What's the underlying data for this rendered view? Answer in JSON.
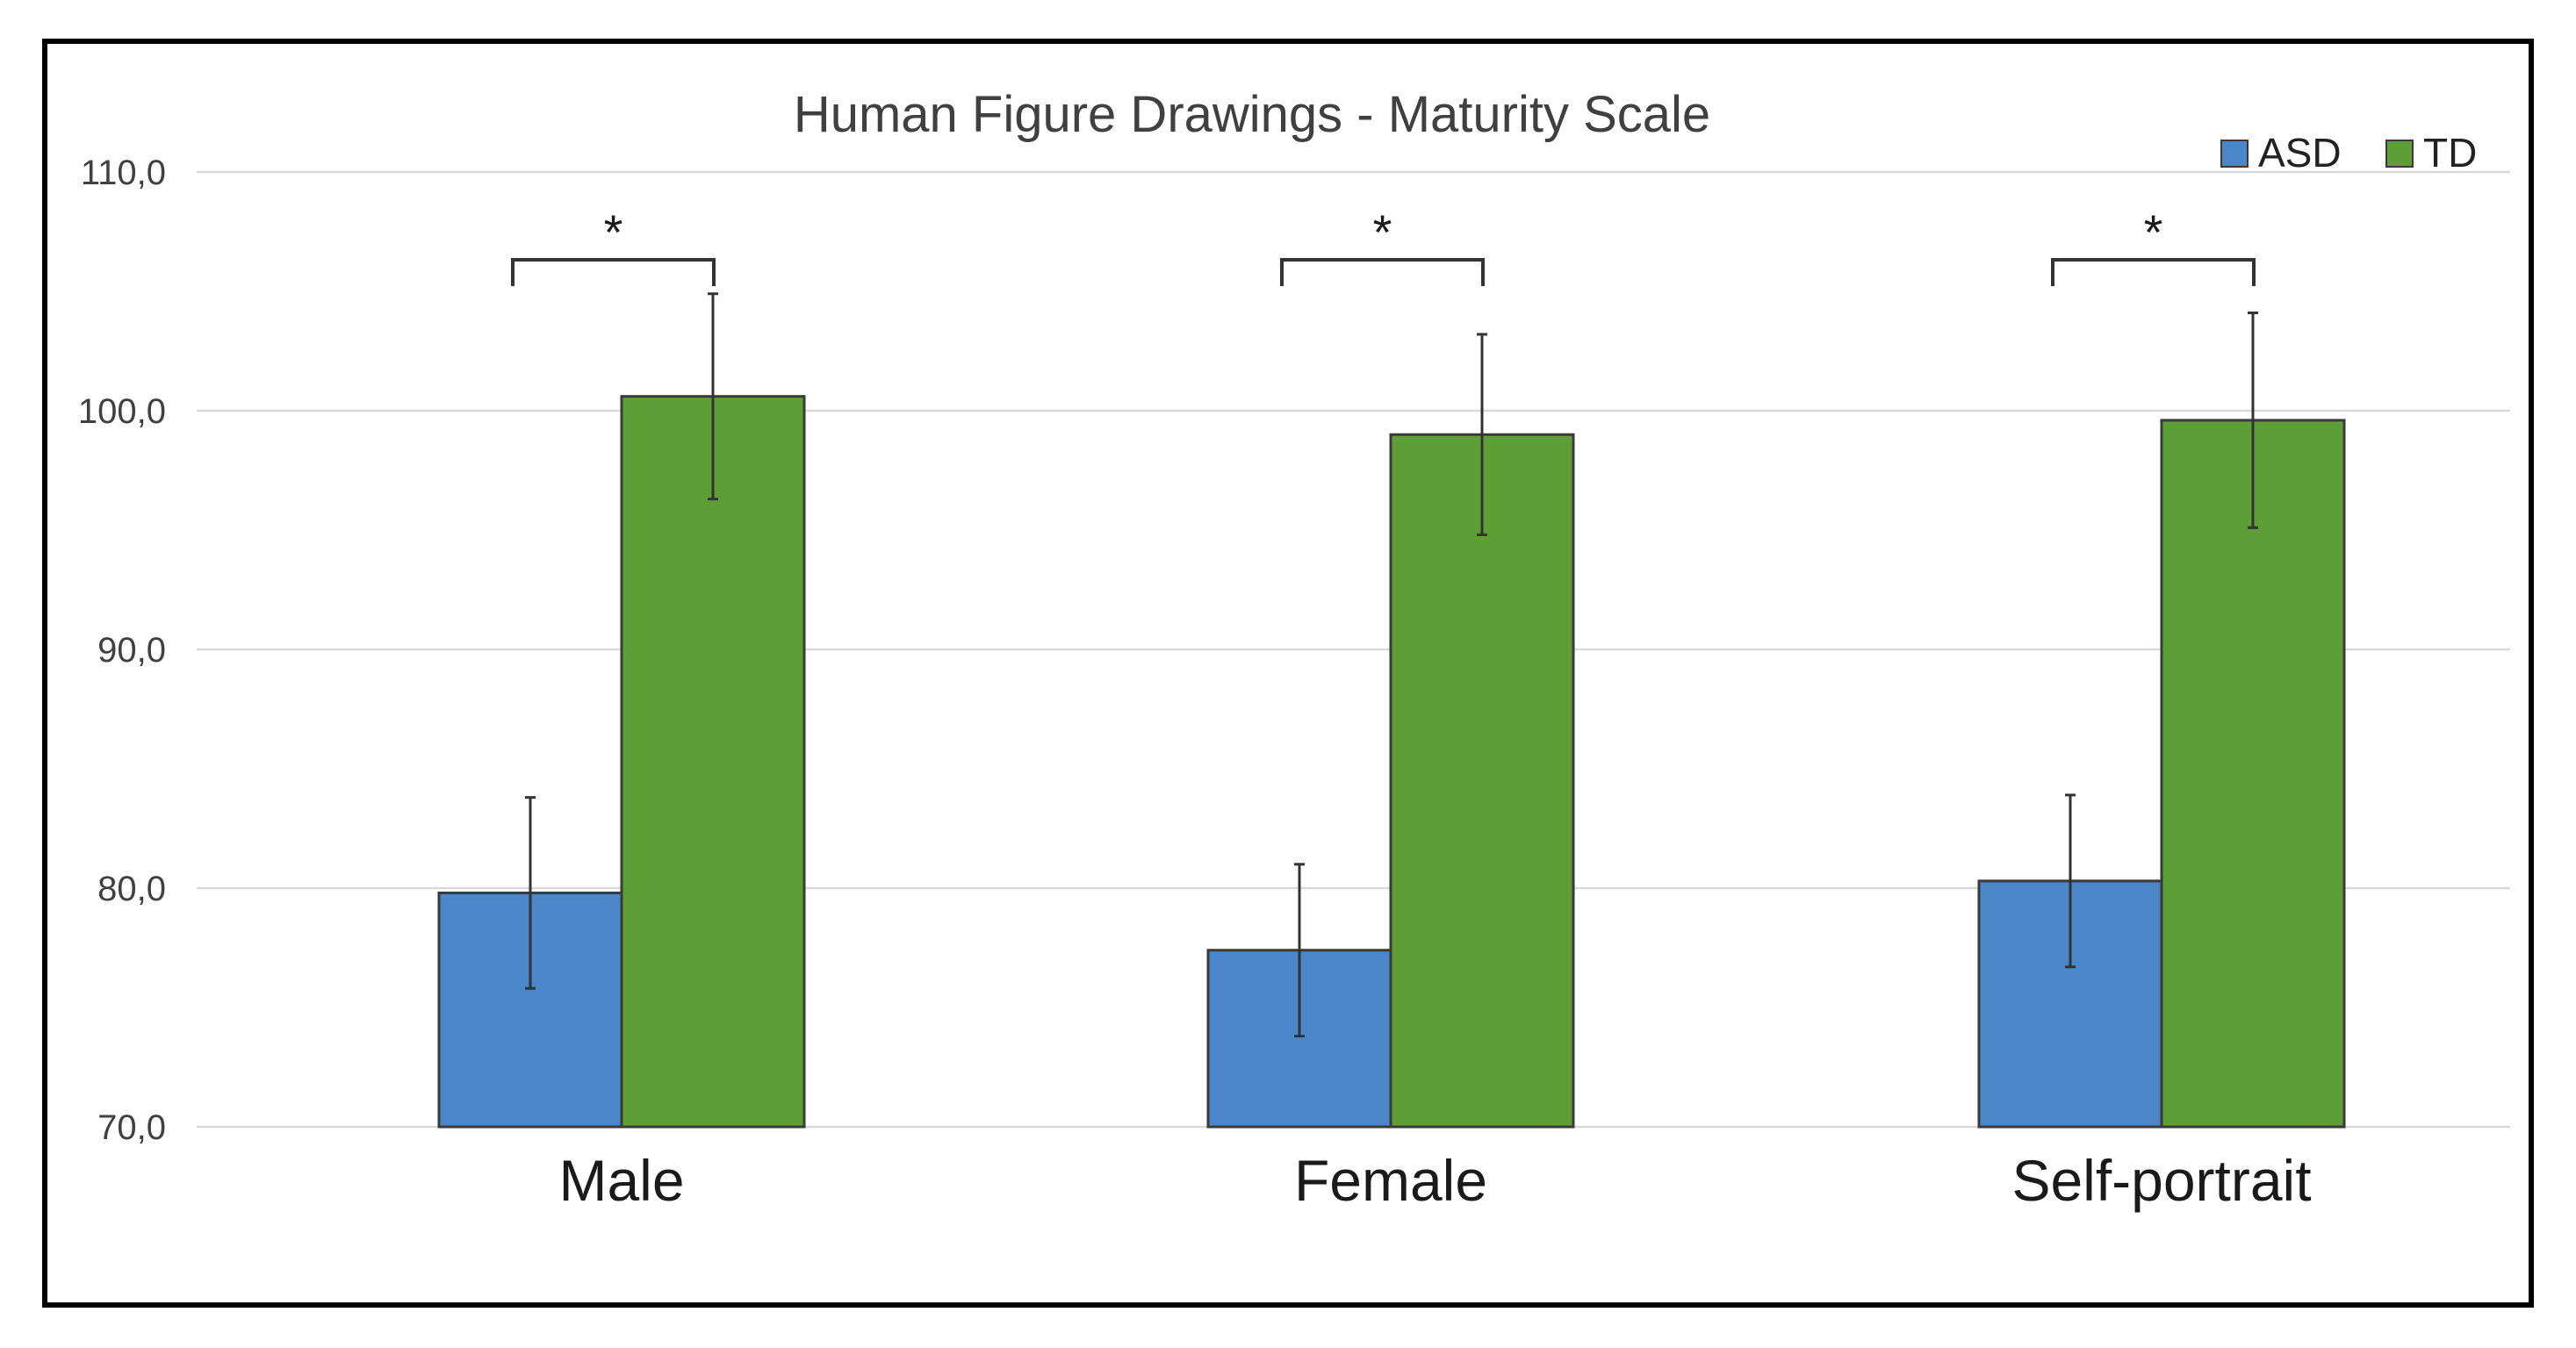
{
  "chart_data": {
    "type": "bar",
    "title": "Human Figure Drawings - Maturity Scale",
    "xlabel": "",
    "ylabel": "",
    "categories": [
      "Male",
      "Female",
      "Self-portrait"
    ],
    "series": [
      {
        "name": "ASD",
        "color": "#4a86c8",
        "values": [
          79.8,
          77.4,
          80.3
        ],
        "error": [
          4.0,
          3.6,
          3.6
        ]
      },
      {
        "name": "TD",
        "color": "#5e9e36",
        "values": [
          100.6,
          99.0,
          99.6
        ],
        "error": [
          4.3,
          4.2,
          4.5
        ]
      }
    ],
    "ylim": [
      70,
      110
    ],
    "yticks": [
      "70,0",
      "80,0",
      "90,0",
      "100,0",
      "110,0"
    ],
    "ytick_values": [
      70,
      80,
      90,
      100,
      110
    ],
    "grid": true,
    "legend_position": "top-right",
    "significance": [
      {
        "category": "Male",
        "label": "*"
      },
      {
        "category": "Female",
        "label": "*"
      },
      {
        "category": "Self-portrait",
        "label": "*"
      }
    ]
  }
}
